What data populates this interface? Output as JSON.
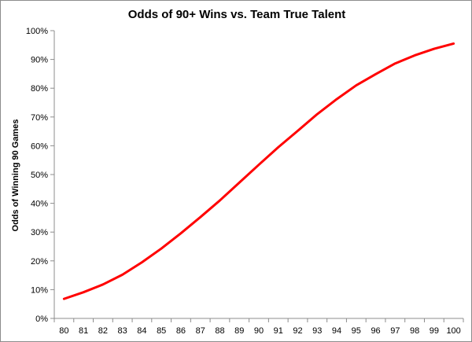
{
  "chart_data": {
    "type": "line",
    "title": "Odds of 90+ Wins vs. Team True Talent",
    "xlabel": "",
    "ylabel": "Odds of Winning 90 Games",
    "x": [
      80,
      81,
      82,
      83,
      84,
      85,
      86,
      87,
      88,
      89,
      90,
      91,
      92,
      93,
      94,
      95,
      96,
      97,
      98,
      99,
      100
    ],
    "x_tick_labels": [
      "80",
      "81",
      "82",
      "83",
      "84",
      "85",
      "86",
      "87",
      "88",
      "89",
      "90",
      "91",
      "92",
      "93",
      "94",
      "95",
      "96",
      "97",
      "98",
      "99",
      "100"
    ],
    "series": [
      {
        "name": "",
        "color": "#ff0000",
        "values": [
          6.8,
          9.1,
          11.8,
          15.2,
          19.5,
          24.3,
          29.6,
          35.2,
          41.0,
          47.2,
          53.4,
          59.5,
          65.2,
          71.0,
          76.2,
          81.0,
          84.9,
          88.6,
          91.4,
          93.7,
          95.5
        ]
      }
    ],
    "ylim": [
      0,
      100
    ],
    "y_ticks": [
      0,
      10,
      20,
      30,
      40,
      50,
      60,
      70,
      80,
      90,
      100
    ],
    "y_tick_labels": [
      "0%",
      "10%",
      "20%",
      "30%",
      "40%",
      "50%",
      "60%",
      "70%",
      "80%",
      "90%",
      "100%"
    ],
    "y_unit": "%",
    "grid": false,
    "legend": "none"
  }
}
